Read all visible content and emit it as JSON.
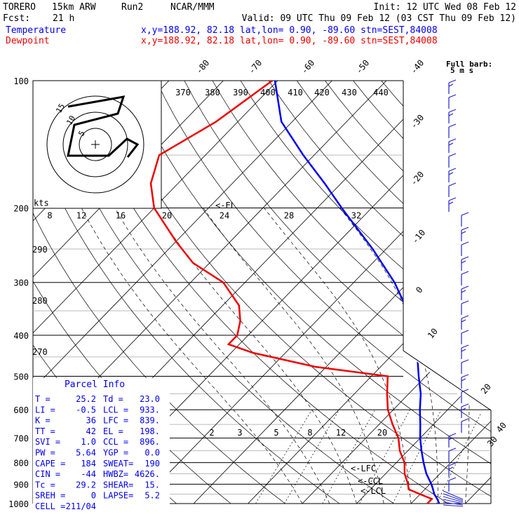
{
  "header": {
    "model": "TORERO",
    "grid": "15km ARW",
    "run": "Run2",
    "source": "NCAR/MMM",
    "init": "Init: 12 UTC Wed 08 Feb 12",
    "fcst_label": "Fcst:",
    "fcst_value": "21 h",
    "valid": "Valid: 09 UTC Thu 09 Feb 12 (03 CST Thu 09 Feb 12)",
    "temp_label": "Temperature",
    "dew_label": "Dewpoint",
    "loc_line": "x,y=188.92, 82.18   lat,lon=  0.90, -89.60   stn=SEST,84008"
  },
  "colors": {
    "temperature": "#0000ee",
    "dewpoint": "#ee0000",
    "grid": "#000000",
    "barb": "#2222cc"
  },
  "chart_data": {
    "type": "skew-t",
    "pressure_levels": [
      100,
      200,
      300,
      400,
      500,
      600,
      700,
      800,
      900,
      1000
    ],
    "temperature_ticks": [
      "-80",
      "-70",
      "-60",
      "-50",
      "-40",
      "-30",
      "-20",
      "-10",
      "0",
      "10",
      "20",
      "30",
      "40"
    ],
    "theta_labels": [
      "370",
      "380",
      "390",
      "400",
      "410",
      "420",
      "430",
      "440"
    ],
    "theta_side_labels": [
      "290",
      "280",
      "270"
    ],
    "mixing_ratio_labels": [
      "2",
      "3",
      "5",
      "8",
      "12",
      "20"
    ],
    "wind_scale_labels": [
      "8",
      "12",
      "16",
      "20",
      "24",
      "28",
      "32"
    ],
    "wind_scale_units": "kts",
    "annotations": {
      "el": "<-EL",
      "lfc": "<-LFC",
      "ccl": "<-CCL",
      "lcl": "<-LCL"
    },
    "full_barb_label": "Full barb:",
    "full_barb_units": "5 m s",
    "temperature_profile": [
      {
        "p": 1000,
        "t": 25.2
      },
      {
        "p": 975,
        "t": 24.0
      },
      {
        "p": 950,
        "t": 22.6
      },
      {
        "p": 925,
        "t": 21.5
      },
      {
        "p": 900,
        "t": 20.3
      },
      {
        "p": 850,
        "t": 17.5
      },
      {
        "p": 800,
        "t": 15.0
      },
      {
        "p": 750,
        "t": 12.5
      },
      {
        "p": 700,
        "t": 10.0
      },
      {
        "p": 650,
        "t": 7.6
      },
      {
        "p": 600,
        "t": 4.9
      },
      {
        "p": 550,
        "t": 2.2
      },
      {
        "p": 500,
        "t": -1.3
      },
      {
        "p": 450,
        "t": -5.0
      },
      {
        "p": 400,
        "t": -9.3
      },
      {
        "p": 350,
        "t": -15.0
      },
      {
        "p": 300,
        "t": -22.5
      },
      {
        "p": 250,
        "t": -32.5
      },
      {
        "p": 200,
        "t": -45.5
      },
      {
        "p": 175,
        "t": -53.0
      },
      {
        "p": 150,
        "t": -62.0
      },
      {
        "p": 125,
        "t": -72.0
      },
      {
        "p": 100,
        "t": -80.5
      }
    ],
    "dewpoint_profile": [
      {
        "p": 1000,
        "t": 23.0
      },
      {
        "p": 975,
        "t": 23.0
      },
      {
        "p": 950,
        "t": 20.0
      },
      {
        "p": 925,
        "t": 17.0
      },
      {
        "p": 900,
        "t": 16.0
      },
      {
        "p": 850,
        "t": 13.5
      },
      {
        "p": 800,
        "t": 11.5
      },
      {
        "p": 750,
        "t": 8.5
      },
      {
        "p": 700,
        "t": 6.0
      },
      {
        "p": 650,
        "t": 2.5
      },
      {
        "p": 600,
        "t": -1.0
      },
      {
        "p": 550,
        "t": -4.0
      },
      {
        "p": 500,
        "t": -7.0
      },
      {
        "p": 475,
        "t": -22.0
      },
      {
        "p": 440,
        "t": -36.0
      },
      {
        "p": 420,
        "t": -42.0
      },
      {
        "p": 400,
        "t": -42.0
      },
      {
        "p": 370,
        "t": -44.0
      },
      {
        "p": 340,
        "t": -47.0
      },
      {
        "p": 300,
        "t": -54.0
      },
      {
        "p": 270,
        "t": -63.0
      },
      {
        "p": 240,
        "t": -70.0
      },
      {
        "p": 200,
        "t": -80.0
      },
      {
        "p": 175,
        "t": -85.0
      },
      {
        "p": 150,
        "t": -88.5
      },
      {
        "p": 125,
        "t": -84.0
      },
      {
        "p": 100,
        "t": -81.0
      }
    ],
    "hodograph_rings": [
      "5",
      "10",
      "15"
    ],
    "parcel_info_title": "Parcel Info",
    "parcel_info": [
      [
        "T   =",
        "25.2",
        "Td  =",
        "23.0"
      ],
      [
        "LI  =",
        "-0.5",
        "LCL =",
        "933."
      ],
      [
        "K   =",
        "36",
        "LFC =",
        "839."
      ],
      [
        "TT  =",
        "42",
        "EL  =",
        "198."
      ],
      [
        "SVI =",
        "1.0",
        "CCL =",
        "896."
      ],
      [
        "PW  =",
        "5.64",
        "YGP =",
        "0.0"
      ],
      [
        "CAPE =",
        "184",
        "SWEAT=",
        "190"
      ],
      [
        "CIN  =",
        "-44",
        "HWBZ=",
        "4626."
      ],
      [
        "Tc   =",
        "29.2",
        "SHEAR=",
        "15."
      ],
      [
        "SREH =",
        "0",
        "LAPSE=",
        "5.2"
      ],
      [
        "CELL =",
        "211/04",
        "",
        ""
      ]
    ]
  }
}
